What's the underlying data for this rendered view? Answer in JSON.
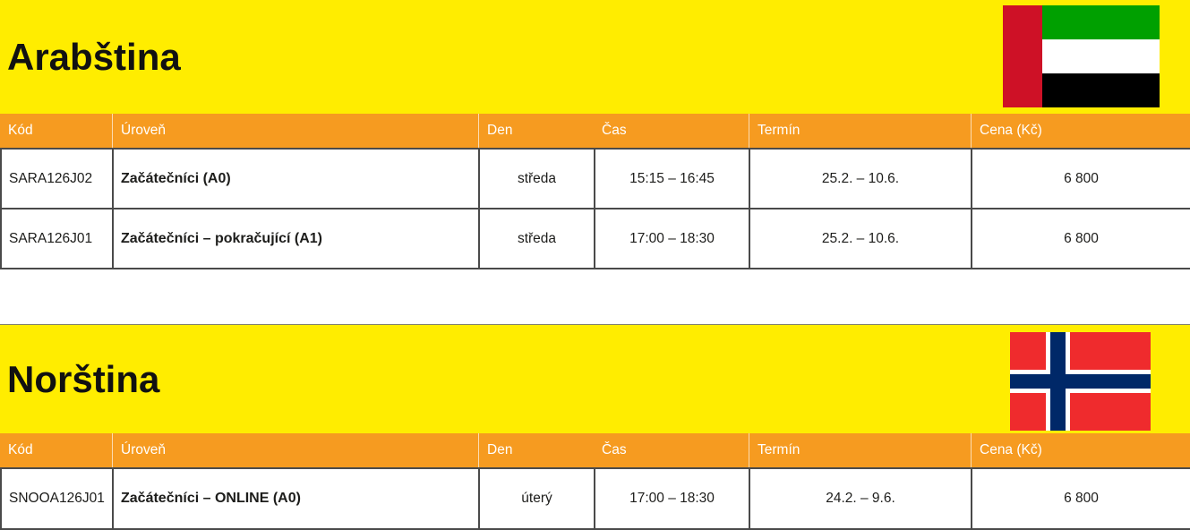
{
  "colors": {
    "yellow": "#FFED00",
    "orange": "#F69B20",
    "header_text": "#ffffff",
    "body_text": "#1d1d1b",
    "border": "#4a4a4a",
    "banner_title": "#111111"
  },
  "columns": [
    "Kód",
    "Úroveň",
    "Den",
    "Čas",
    "Termín",
    "Cena (Kč)"
  ],
  "sections": [
    {
      "title": "Arabština",
      "flag": "uae-flag",
      "rows": [
        {
          "code": "SARA126J02",
          "level": "Začátečníci (A0)",
          "day": "středa",
          "time": "15:15 – 16:45",
          "term": "25.2. – 10.6.",
          "price": "6 800"
        },
        {
          "code": "SARA126J01",
          "level": "Začátečníci – pokračující (A1)",
          "day": "středa",
          "time": "17:00 – 18:30",
          "term": "25.2. – 10.6.",
          "price": "6 800"
        }
      ]
    },
    {
      "title": "Norština",
      "flag": "norway-flag",
      "rows": [
        {
          "code": "SNOOA126J01",
          "level": "Začátečníci – ONLINE (A0)",
          "day": "úterý",
          "time": "17:00 – 18:30",
          "term": "24.2. – 9.6.",
          "price": "6 800"
        }
      ]
    }
  ]
}
